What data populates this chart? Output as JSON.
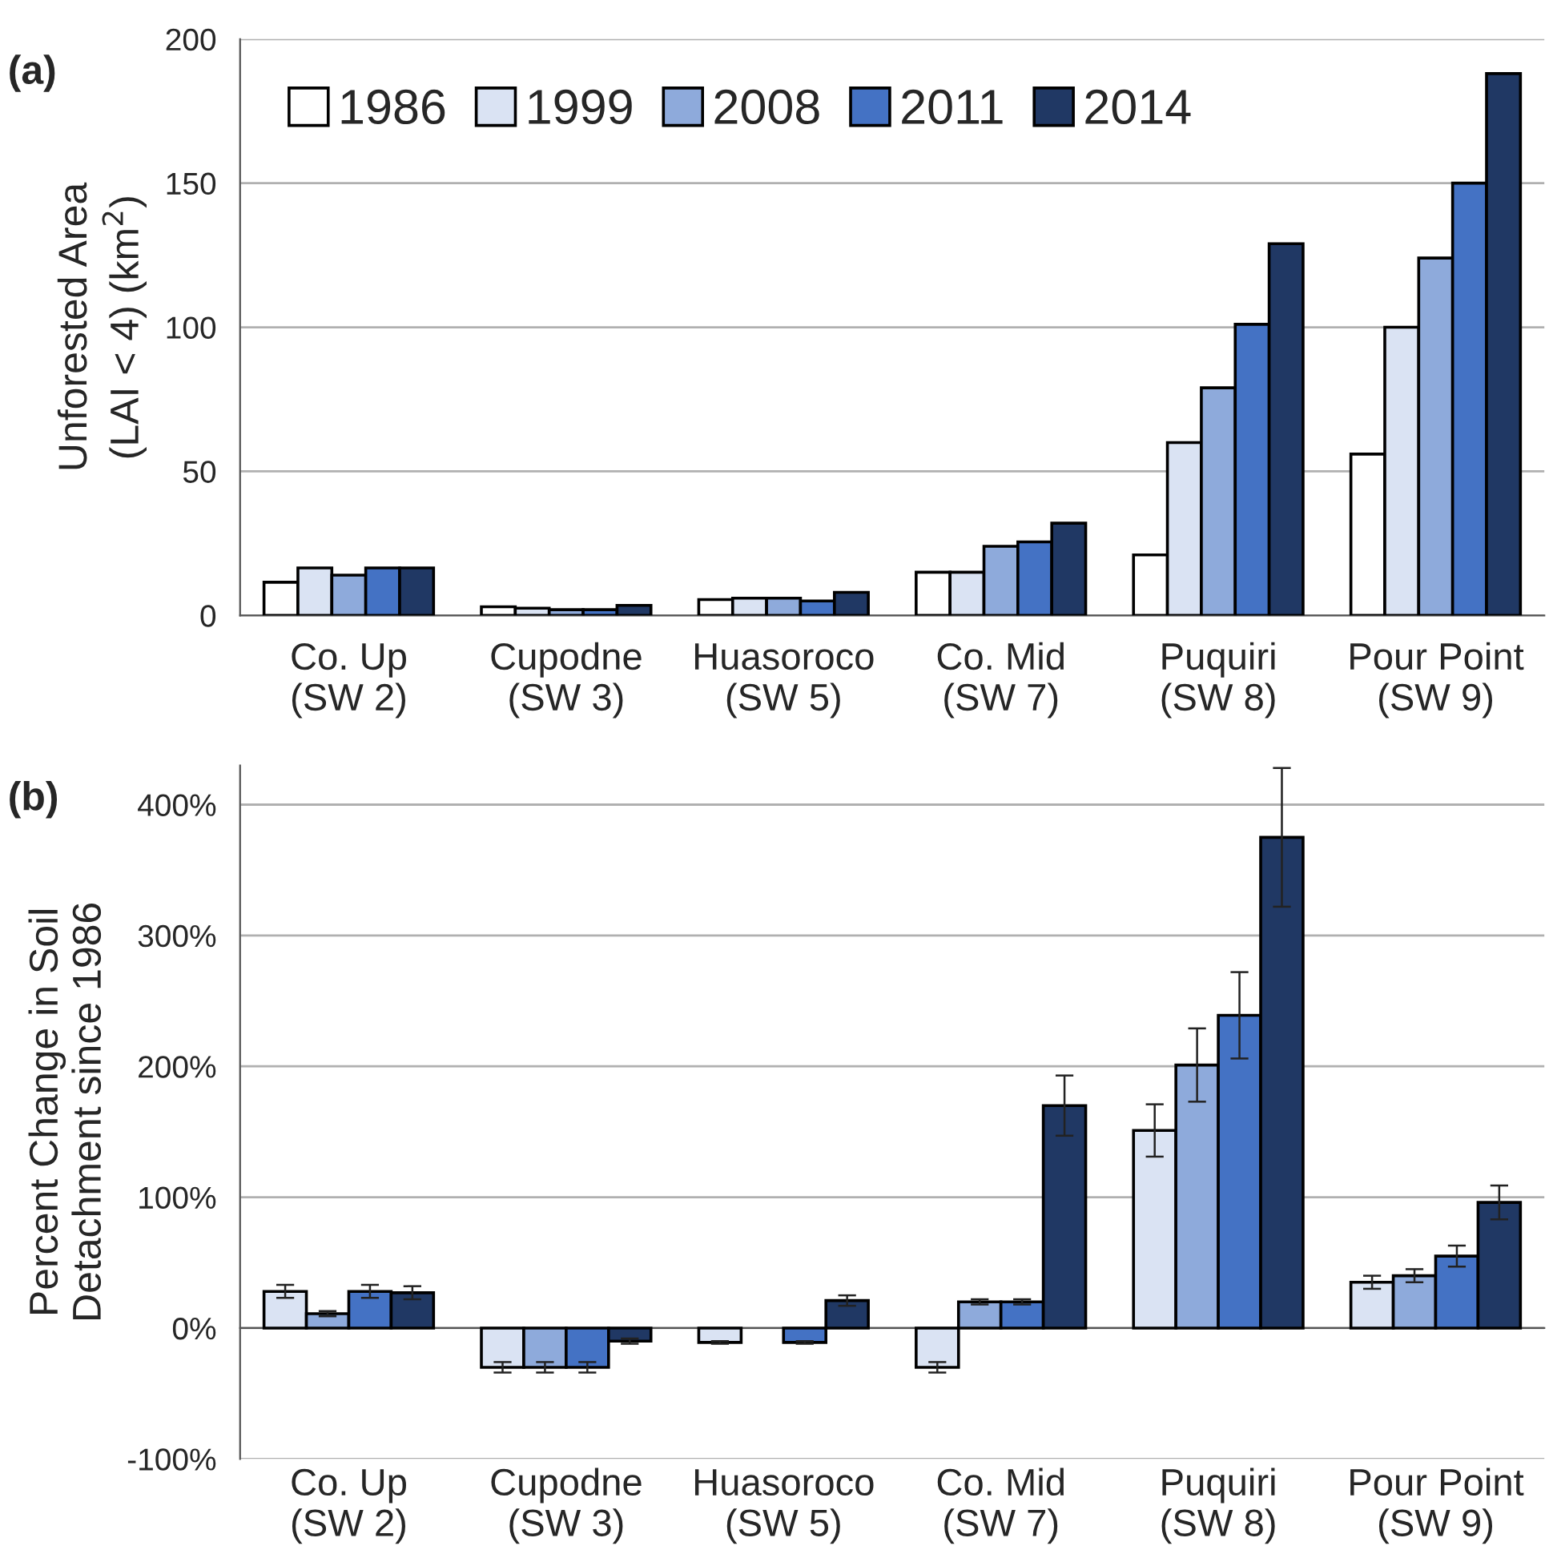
{
  "chart_data": [
    {
      "type": "bar",
      "title": "(a)",
      "ylabel": "Unforested Area\n(LAI < 4) (km$^{2}$)",
      "categories": [
        "Co. Up\n(SW 2)",
        "Cupodne\n(SW 3)",
        "Huasoroco\n(SW 5)",
        "Co. Mid\n(SW 7)",
        "Puquiri\n(SW 8)",
        "Pour Point\n(SW 9)"
      ],
      "series": [
        {
          "name": "1986",
          "color": "#ffffff",
          "values": [
            11.5,
            3,
            5.5,
            15,
            21,
            56
          ]
        },
        {
          "name": "1999",
          "color": "#dae3f3",
          "values": [
            16.5,
            2.5,
            6,
            15,
            60,
            100
          ]
        },
        {
          "name": "2008",
          "color": "#8eaadb",
          "values": [
            14,
            2,
            6,
            24,
            79,
            124
          ]
        },
        {
          "name": "2011",
          "color": "#4472c4",
          "values": [
            16.5,
            2,
            5,
            25.5,
            101,
            150
          ]
        },
        {
          "name": "2014",
          "color": "#203864",
          "values": [
            16.5,
            3.5,
            8,
            32,
            129,
            188
          ]
        }
      ],
      "ylim": [
        0,
        200
      ],
      "yticks": [
        0,
        50,
        100,
        150,
        200
      ],
      "grid": "y",
      "legend": "top left"
    },
    {
      "type": "bar",
      "title": "(b)",
      "ylabel": "Percent Change in Soil\nDetachment since 1986",
      "categories": [
        "Co. Up\n(SW 2)",
        "Cupodne\n(SW 3)",
        "Huasoroco\n(SW 5)",
        "Co. Mid\n(SW 7)",
        "Puquiri\n(SW 8)",
        "Pour Point\n(SW 9)"
      ],
      "series": [
        {
          "color": "#dae3f3",
          "values": [
            28,
            -30,
            -11,
            -30,
            151,
            35
          ],
          "errors": [
            5,
            4,
            1,
            4,
            20,
            5
          ]
        },
        {
          "color": "#8eaadb",
          "values": [
            11,
            -30,
            null,
            20,
            201,
            40
          ],
          "errors": [
            2,
            4,
            null,
            2,
            28,
            5
          ]
        },
        {
          "color": "#4472c4",
          "values": [
            28,
            -30,
            -11,
            20,
            239,
            55
          ],
          "errors": [
            5,
            4,
            1,
            2,
            33,
            8
          ]
        },
        {
          "color": "#203864",
          "values": [
            27,
            -10,
            21,
            170,
            375,
            96
          ],
          "errors": [
            5,
            2,
            4,
            23,
            53,
            13
          ]
        }
      ],
      "ylim": [
        -100,
        430
      ],
      "yticks": [
        {
          "value": -100,
          "label": "-100%"
        },
        {
          "value": 0,
          "label": "0%"
        },
        {
          "value": 100,
          "label": "100%"
        },
        {
          "value": 200,
          "label": "200%"
        },
        {
          "value": 300,
          "label": "300%"
        },
        {
          "value": 400,
          "label": "400%"
        }
      ],
      "grid": "y"
    }
  ]
}
